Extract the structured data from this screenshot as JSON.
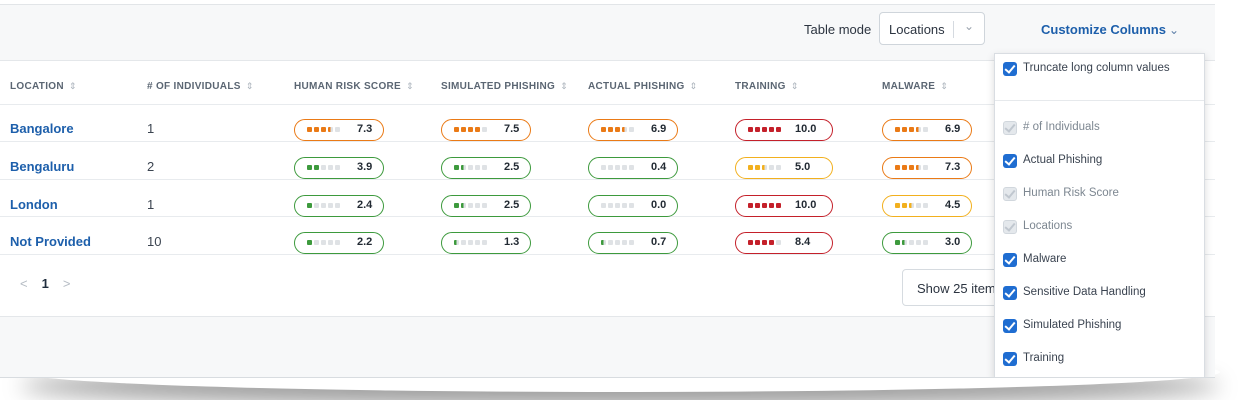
{
  "toolbar": {
    "table_mode_label": "Table mode",
    "table_mode_value": "Locations",
    "customize_label": "Customize Columns"
  },
  "table": {
    "columns": [
      {
        "label": "LOCATION",
        "key": "location"
      },
      {
        "label": "# OF INDIVIDUALS",
        "key": "count"
      },
      {
        "label": "HUMAN RISK SCORE",
        "key": "hrs"
      },
      {
        "label": "SIMULATED PHISHING",
        "key": "sim"
      },
      {
        "label": "ACTUAL PHISHING",
        "key": "act"
      },
      {
        "label": "TRAINING",
        "key": "train"
      },
      {
        "label": "MALWARE",
        "key": "mal"
      }
    ],
    "rows": [
      {
        "location": "Bangalore",
        "count": "1",
        "hrs": "7.3",
        "sim": "7.5",
        "act": "6.9",
        "train": "10.0",
        "mal": "6.9"
      },
      {
        "location": "Bengaluru",
        "count": "2",
        "hrs": "3.9",
        "sim": "2.5",
        "act": "0.4",
        "train": "5.0",
        "mal": "7.3"
      },
      {
        "location": "London",
        "count": "1",
        "hrs": "2.4",
        "sim": "2.5",
        "act": "0.0",
        "train": "10.0",
        "mal": "4.5"
      },
      {
        "location": "Not Provided",
        "count": "10",
        "hrs": "2.2",
        "sim": "1.3",
        "act": "0.7",
        "train": "8.4",
        "mal": "3.0"
      }
    ]
  },
  "score_colors": {
    "green": "#3d9a3d",
    "yellow": "#f2b01e",
    "orange": "#ea7a16",
    "red": "#c4202a",
    "empty": "#dfe2e5"
  },
  "pagination": {
    "prev_icon": "chevron-left-icon",
    "current_page": "1",
    "next_icon": "chevron-right-icon",
    "page_size_label": "Show 25 items"
  },
  "column_menu": {
    "truncate": {
      "label": "Truncate long column values",
      "checked": true
    },
    "options": [
      {
        "label": "# of Individuals",
        "checked": true,
        "disabled": true
      },
      {
        "label": "Actual Phishing",
        "checked": true,
        "disabled": false
      },
      {
        "label": "Human Risk Score",
        "checked": true,
        "disabled": true
      },
      {
        "label": "Locations",
        "checked": true,
        "disabled": true
      },
      {
        "label": "Malware",
        "checked": true,
        "disabled": false
      },
      {
        "label": "Sensitive Data Handling",
        "checked": true,
        "disabled": false
      },
      {
        "label": "Simulated Phishing",
        "checked": true,
        "disabled": false
      },
      {
        "label": "Training",
        "checked": true,
        "disabled": false
      }
    ]
  }
}
